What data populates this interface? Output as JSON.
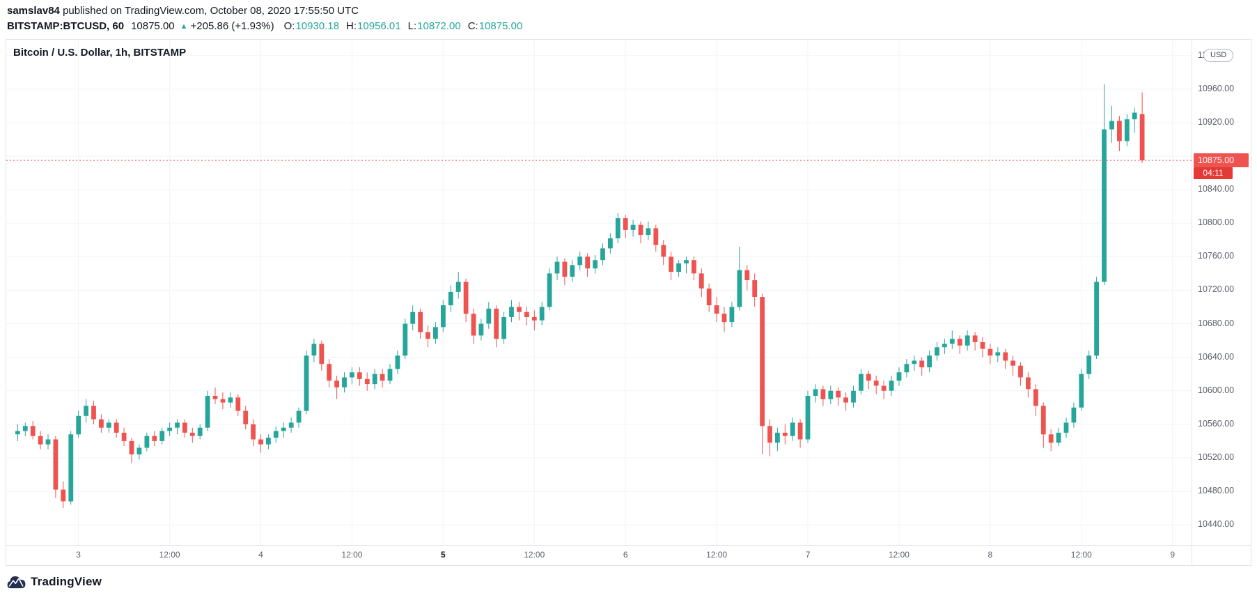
{
  "published_line": {
    "author": "samslav84",
    "rest": " published on TradingView.com, October 08, 2020 17:55:50 UTC"
  },
  "symbol_line": {
    "symbol": "BITSTAMP:BTCUSD, 60",
    "last_price": "10875.00",
    "direction_icon": "up-triangle",
    "direction_glyph": "▲",
    "change": "+205.86 (+1.93%)",
    "o_label": "O:",
    "o_value": "10930.18",
    "h_label": "H:",
    "h_value": "10956.01",
    "l_label": "L:",
    "l_value": "10872.00",
    "c_label": "C:",
    "c_value": "10875.00"
  },
  "axis": {
    "currency_button": "USD",
    "price_badge": "10875.00",
    "countdown_badge": "04:11"
  },
  "footer": {
    "brand": "TradingView"
  },
  "colors": {
    "up": "#26a69a",
    "down": "#ef5350",
    "grid": "#f0f3fa",
    "axis_text": "#5d606b",
    "text_dark": "#131722",
    "value_teal": "#26a69a",
    "price_badge_bg": "#ef5350",
    "countdown_badge_bg": "#e53935",
    "last_price_line": "#ef5350",
    "border": "#e0e3eb",
    "logo": "#222f4f"
  },
  "chart_data": {
    "type": "candlestick",
    "title": "Bitcoin / U.S. Dollar, 1h, BITSTAMP",
    "pair": "Bitcoin / U.S. Dollar",
    "interval": "1h",
    "exchange": "BITSTAMP",
    "grid": true,
    "legend_position": "top-left",
    "y_domain": [
      10416,
      11019
    ],
    "price_ticks": [
      10440,
      10480,
      10520,
      10560,
      10600,
      10640,
      10680,
      10720,
      10760,
      10800,
      10840,
      10880,
      10920,
      10960,
      11000
    ],
    "covered_tick": 10880,
    "last_price": 10875.0,
    "countdown": "04:11",
    "total_slots": 156,
    "candle_start_slot": 1,
    "time_ticks": [
      {
        "label": "3",
        "slot": 9,
        "bold": false
      },
      {
        "label": "12:00",
        "slot": 21,
        "bold": false
      },
      {
        "label": "4",
        "slot": 33,
        "bold": false
      },
      {
        "label": "12:00",
        "slot": 45,
        "bold": false
      },
      {
        "label": "5",
        "slot": 57,
        "bold": true
      },
      {
        "label": "12:00",
        "slot": 69,
        "bold": false
      },
      {
        "label": "6",
        "slot": 81,
        "bold": false
      },
      {
        "label": "12:00",
        "slot": 93,
        "bold": false
      },
      {
        "label": "7",
        "slot": 105,
        "bold": false
      },
      {
        "label": "12:00",
        "slot": 117,
        "bold": false
      },
      {
        "label": "8",
        "slot": 129,
        "bold": false
      },
      {
        "label": "12:00",
        "slot": 141,
        "bold": false
      },
      {
        "label": "9",
        "slot": 153,
        "bold": false
      }
    ],
    "candles": [
      [
        10548,
        10560,
        10540,
        10552
      ],
      [
        10552,
        10562,
        10546,
        10558
      ],
      [
        10558,
        10564,
        10542,
        10546
      ],
      [
        10546,
        10552,
        10530,
        10536
      ],
      [
        10536,
        10548,
        10530,
        10542
      ],
      [
        10542,
        10546,
        10472,
        10482
      ],
      [
        10482,
        10492,
        10460,
        10468
      ],
      [
        10468,
        10552,
        10464,
        10548
      ],
      [
        10548,
        10576,
        10544,
        10570
      ],
      [
        10570,
        10590,
        10562,
        10582
      ],
      [
        10582,
        10588,
        10560,
        10566
      ],
      [
        10566,
        10572,
        10550,
        10556
      ],
      [
        10556,
        10566,
        10550,
        10562
      ],
      [
        10562,
        10566,
        10544,
        10550
      ],
      [
        10550,
        10556,
        10534,
        10540
      ],
      [
        10540,
        10544,
        10514,
        10524
      ],
      [
        10524,
        10536,
        10518,
        10532
      ],
      [
        10532,
        10550,
        10528,
        10546
      ],
      [
        10546,
        10552,
        10534,
        10540
      ],
      [
        10540,
        10556,
        10536,
        10552
      ],
      [
        10552,
        10562,
        10546,
        10556
      ],
      [
        10556,
        10566,
        10548,
        10562
      ],
      [
        10562,
        10566,
        10544,
        10550
      ],
      [
        10550,
        10556,
        10538,
        10546
      ],
      [
        10546,
        10560,
        10542,
        10556
      ],
      [
        10556,
        10600,
        10552,
        10594
      ],
      [
        10594,
        10604,
        10584,
        10590
      ],
      [
        10590,
        10598,
        10578,
        10586
      ],
      [
        10586,
        10598,
        10580,
        10592
      ],
      [
        10592,
        10596,
        10570,
        10576
      ],
      [
        10576,
        10582,
        10554,
        10560
      ],
      [
        10560,
        10566,
        10534,
        10542
      ],
      [
        10542,
        10548,
        10526,
        10536
      ],
      [
        10536,
        10548,
        10530,
        10544
      ],
      [
        10544,
        10558,
        10538,
        10552
      ],
      [
        10552,
        10562,
        10544,
        10556
      ],
      [
        10556,
        10568,
        10550,
        10562
      ],
      [
        10562,
        10580,
        10556,
        10576
      ],
      [
        10576,
        10648,
        10572,
        10642
      ],
      [
        10642,
        10662,
        10634,
        10656
      ],
      [
        10656,
        10660,
        10624,
        10632
      ],
      [
        10632,
        10638,
        10604,
        10612
      ],
      [
        10612,
        10618,
        10590,
        10604
      ],
      [
        10604,
        10622,
        10598,
        10616
      ],
      [
        10616,
        10628,
        10608,
        10622
      ],
      [
        10622,
        10628,
        10606,
        10614
      ],
      [
        10614,
        10622,
        10600,
        10608
      ],
      [
        10608,
        10626,
        10602,
        10620
      ],
      [
        10620,
        10626,
        10604,
        10612
      ],
      [
        10612,
        10632,
        10608,
        10626
      ],
      [
        10626,
        10648,
        10620,
        10642
      ],
      [
        10642,
        10686,
        10638,
        10680
      ],
      [
        10680,
        10702,
        10672,
        10694
      ],
      [
        10694,
        10698,
        10662,
        10670
      ],
      [
        10670,
        10678,
        10652,
        10662
      ],
      [
        10662,
        10682,
        10656,
        10676
      ],
      [
        10676,
        10708,
        10670,
        10702
      ],
      [
        10702,
        10726,
        10694,
        10718
      ],
      [
        10718,
        10742,
        10710,
        10730
      ],
      [
        10730,
        10734,
        10682,
        10692
      ],
      [
        10692,
        10698,
        10656,
        10666
      ],
      [
        10666,
        10686,
        10660,
        10680
      ],
      [
        10680,
        10706,
        10674,
        10698
      ],
      [
        10698,
        10702,
        10652,
        10662
      ],
      [
        10662,
        10694,
        10656,
        10688
      ],
      [
        10688,
        10708,
        10682,
        10700
      ],
      [
        10700,
        10706,
        10684,
        10694
      ],
      [
        10694,
        10700,
        10678,
        10688
      ],
      [
        10688,
        10696,
        10672,
        10684
      ],
      [
        10684,
        10706,
        10678,
        10700
      ],
      [
        10700,
        10746,
        10696,
        10740
      ],
      [
        10740,
        10760,
        10732,
        10754
      ],
      [
        10754,
        10758,
        10726,
        10736
      ],
      [
        10736,
        10756,
        10730,
        10750
      ],
      [
        10750,
        10766,
        10744,
        10760
      ],
      [
        10760,
        10764,
        10736,
        10746
      ],
      [
        10746,
        10762,
        10740,
        10756
      ],
      [
        10756,
        10776,
        10750,
        10770
      ],
      [
        10770,
        10788,
        10764,
        10782
      ],
      [
        10782,
        10812,
        10776,
        10806
      ],
      [
        10806,
        10810,
        10782,
        10792
      ],
      [
        10792,
        10804,
        10784,
        10798
      ],
      [
        10798,
        10802,
        10776,
        10786
      ],
      [
        10786,
        10802,
        10780,
        10794
      ],
      [
        10794,
        10798,
        10766,
        10774
      ],
      [
        10774,
        10780,
        10750,
        10760
      ],
      [
        10760,
        10766,
        10732,
        10742
      ],
      [
        10742,
        10756,
        10736,
        10752
      ],
      [
        10752,
        10760,
        10740,
        10756
      ],
      [
        10756,
        10760,
        10732,
        10740
      ],
      [
        10740,
        10746,
        10712,
        10722
      ],
      [
        10722,
        10728,
        10694,
        10702
      ],
      [
        10702,
        10712,
        10682,
        10692
      ],
      [
        10692,
        10700,
        10670,
        10682
      ],
      [
        10682,
        10706,
        10676,
        10700
      ],
      [
        10700,
        10772,
        10696,
        10744
      ],
      [
        10744,
        10750,
        10720,
        10732
      ],
      [
        10732,
        10740,
        10700,
        10712
      ],
      [
        10712,
        10716,
        10524,
        10558
      ],
      [
        10558,
        10566,
        10522,
        10538
      ],
      [
        10538,
        10556,
        10528,
        10550
      ],
      [
        10550,
        10560,
        10536,
        10546
      ],
      [
        10546,
        10568,
        10540,
        10562
      ],
      [
        10562,
        10566,
        10532,
        10542
      ],
      [
        10542,
        10600,
        10538,
        10594
      ],
      [
        10594,
        10608,
        10586,
        10602
      ],
      [
        10602,
        10606,
        10582,
        10590
      ],
      [
        10590,
        10606,
        10584,
        10600
      ],
      [
        10600,
        10604,
        10582,
        10592
      ],
      [
        10592,
        10598,
        10576,
        10586
      ],
      [
        10586,
        10606,
        10580,
        10600
      ],
      [
        10600,
        10626,
        10596,
        10620
      ],
      [
        10620,
        10624,
        10602,
        10612
      ],
      [
        10612,
        10618,
        10596,
        10606
      ],
      [
        10606,
        10612,
        10590,
        10600
      ],
      [
        10600,
        10618,
        10594,
        10612
      ],
      [
        10612,
        10628,
        10606,
        10622
      ],
      [
        10622,
        10638,
        10616,
        10632
      ],
      [
        10632,
        10642,
        10624,
        10636
      ],
      [
        10636,
        10640,
        10618,
        10628
      ],
      [
        10628,
        10648,
        10622,
        10642
      ],
      [
        10642,
        10658,
        10636,
        10652
      ],
      [
        10652,
        10662,
        10644,
        10656
      ],
      [
        10656,
        10672,
        10650,
        10662
      ],
      [
        10662,
        10666,
        10644,
        10654
      ],
      [
        10654,
        10672,
        10648,
        10666
      ],
      [
        10666,
        10670,
        10648,
        10658
      ],
      [
        10658,
        10664,
        10640,
        10650
      ],
      [
        10650,
        10656,
        10632,
        10642
      ],
      [
        10642,
        10652,
        10634,
        10646
      ],
      [
        10646,
        10650,
        10626,
        10636
      ],
      [
        10636,
        10642,
        10618,
        10630
      ],
      [
        10630,
        10634,
        10606,
        10616
      ],
      [
        10616,
        10622,
        10592,
        10602
      ],
      [
        10602,
        10608,
        10570,
        10582
      ],
      [
        10582,
        10586,
        10532,
        10548
      ],
      [
        10548,
        10554,
        10528,
        10538
      ],
      [
        10538,
        10556,
        10534,
        10550
      ],
      [
        10550,
        10568,
        10544,
        10562
      ],
      [
        10562,
        10586,
        10556,
        10580
      ],
      [
        10580,
        10626,
        10576,
        10620
      ],
      [
        10620,
        10648,
        10614,
        10642
      ],
      [
        10642,
        10736,
        10638,
        10730
      ],
      [
        10730,
        10966,
        10726,
        10912
      ],
      [
        10912,
        10940,
        10896,
        10922
      ],
      [
        10922,
        10928,
        10886,
        10898
      ],
      [
        10898,
        10930,
        10892,
        10924
      ],
      [
        10924,
        10938,
        10908,
        10932
      ],
      [
        10930.18,
        10956.01,
        10872,
        10875
      ]
    ]
  }
}
